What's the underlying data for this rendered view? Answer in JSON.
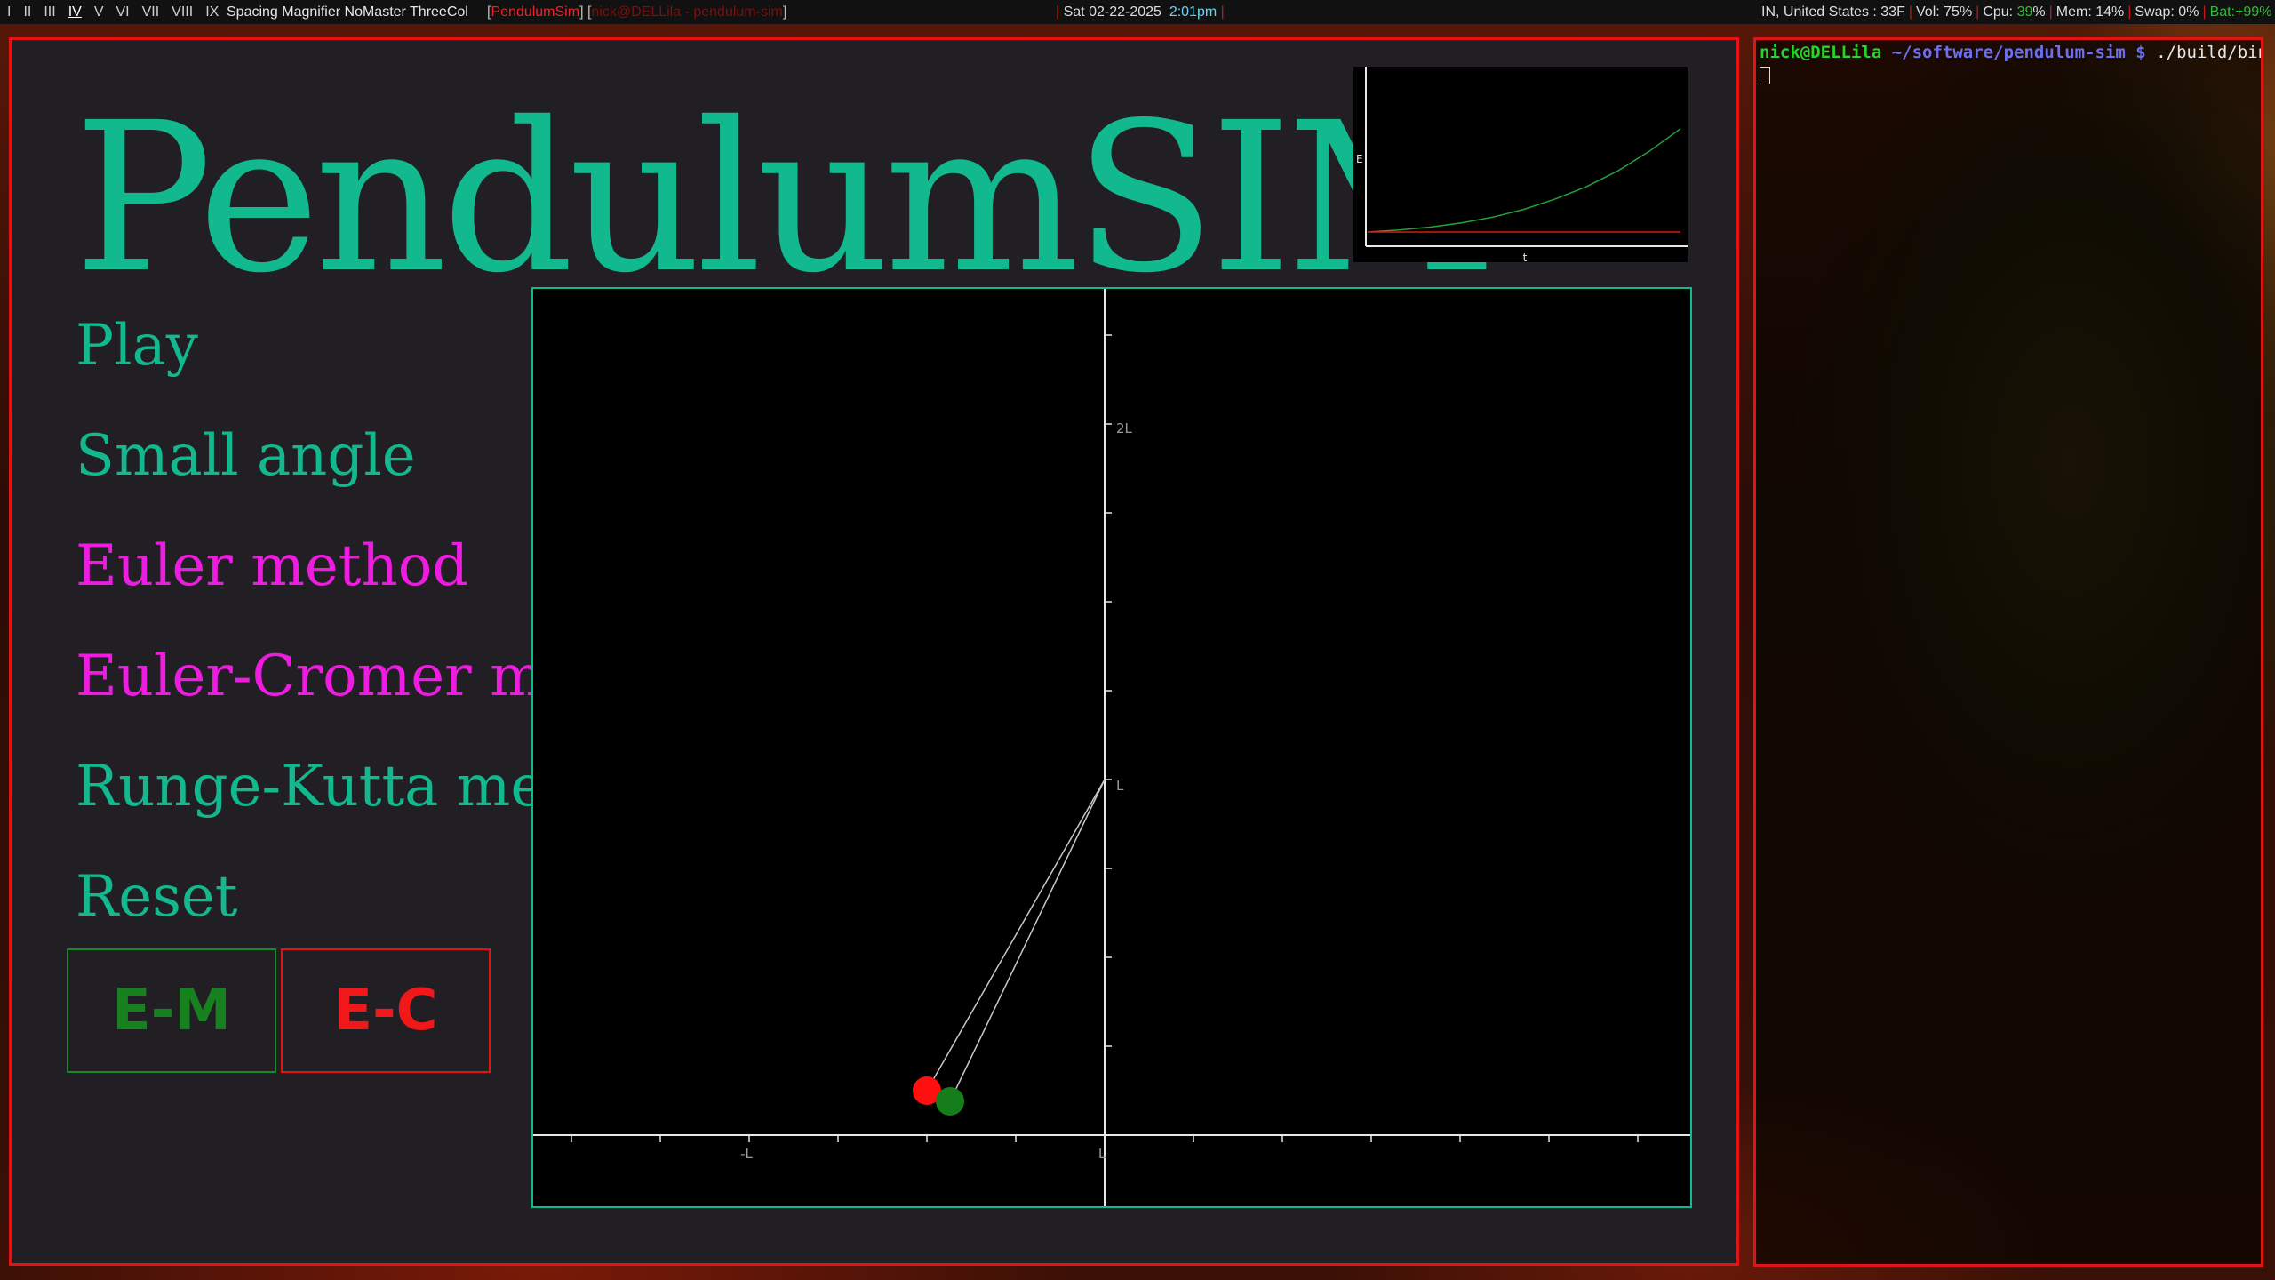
{
  "topbar": {
    "workspaces": [
      {
        "label": "I",
        "active": false
      },
      {
        "label": "II",
        "active": false
      },
      {
        "label": "III",
        "active": false
      },
      {
        "label": "IV",
        "active": true
      },
      {
        "label": "V",
        "active": false
      },
      {
        "label": "VI",
        "active": false
      },
      {
        "label": "VII",
        "active": false
      },
      {
        "label": "VIII",
        "active": false
      },
      {
        "label": "IX",
        "active": false
      }
    ],
    "layout": "Spacing Magnifier NoMaster ThreeCol",
    "current_window": "PendulumSim",
    "other_window": "nick@DELLila - pendulum-sim",
    "date": "Sat 02-22-2025",
    "time": "2:01pm",
    "location_temp": "IN, United States : 33F",
    "vol": "Vol: 75%",
    "cpu_label": "Cpu:",
    "cpu_value": "39",
    "cpu_pct": "%",
    "mem": "Mem: 14%",
    "swap": "Swap: 0%",
    "battery": "Bat:+99%"
  },
  "app": {
    "title": "PendulumSIM",
    "menu": [
      {
        "label": "Play",
        "color": "#12b88e"
      },
      {
        "label": "Small angle",
        "color": "#12b88e"
      },
      {
        "label": "Euler method",
        "color": "#ee1ce0"
      },
      {
        "label": "Euler-Cromer method",
        "color": "#ee1ce0"
      },
      {
        "label": "Runge-Kutta method",
        "color": "#12b88e"
      },
      {
        "label": "Reset",
        "color": "#12b88e"
      }
    ],
    "buttons": {
      "em": "E-M",
      "ec": "E-C"
    },
    "colors": {
      "accent": "#12b88e",
      "magenta": "#ee1ce0",
      "red": "#e01414",
      "green": "#178a2a"
    }
  },
  "energy_plot": {
    "ylabel": "E",
    "xlabel": "t"
  },
  "sim": {
    "labels": {
      "two_l": "2L",
      "l_vertical": "L",
      "neg_l": "-L",
      "l_horizontal": "L"
    }
  },
  "chart_data": [
    {
      "type": "line",
      "title": "",
      "xlabel": "t",
      "ylabel": "E",
      "series": [
        {
          "color": "#23a23a",
          "x": [
            0,
            0.1,
            0.2,
            0.3,
            0.4,
            0.5,
            0.6,
            0.7,
            0.8,
            0.9,
            1.0
          ],
          "values": [
            1.0,
            1.005,
            1.012,
            1.022,
            1.036,
            1.055,
            1.08,
            1.11,
            1.148,
            1.195,
            1.25
          ]
        },
        {
          "color": "#e01414",
          "x": [
            0,
            1.0
          ],
          "values": [
            1.0,
            1.0
          ]
        }
      ],
      "xlim": [
        0,
        1
      ],
      "ylim": [
        0.97,
        1.4
      ],
      "grid": false
    },
    {
      "type": "scatter",
      "title": "",
      "xlabel": "",
      "ylabel": "",
      "pivot": {
        "x": 0,
        "y": 1
      },
      "series": [
        {
          "color": "#ff0f0f",
          "x": [
            -0.5
          ],
          "values": [
            0.125
          ]
        },
        {
          "color": "#157d1a",
          "x": [
            -0.435
          ],
          "values": [
            0.095
          ]
        }
      ],
      "xlim": [
        -1.6,
        1.6
      ],
      "ylim": [
        0,
        2.3
      ],
      "x_ticks": [
        "-L",
        "L"
      ],
      "y_ticks": [
        "L",
        "2L"
      ],
      "grid": false
    }
  ],
  "terminal": {
    "user_host": "nick@DELLila",
    "path": "~/software/pendulum-sim",
    "prompt_symbol": "$",
    "command": "./build/bin/"
  }
}
